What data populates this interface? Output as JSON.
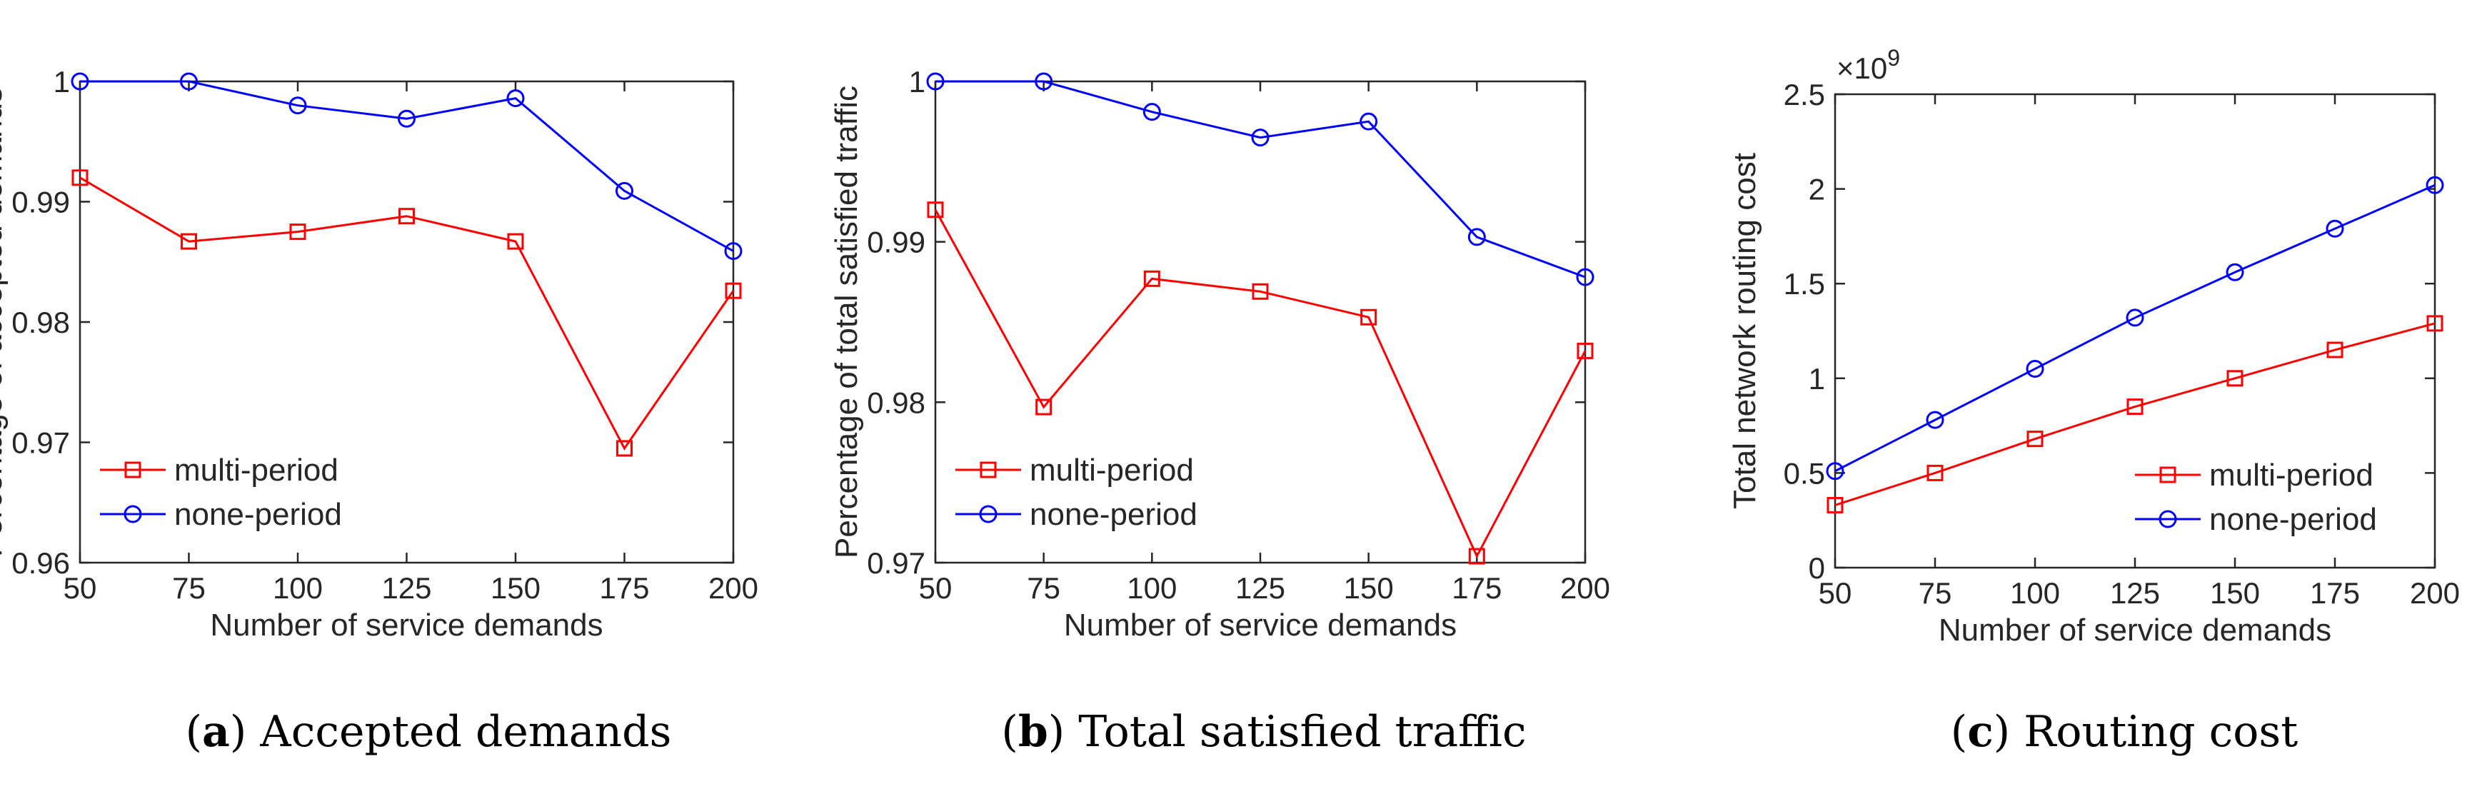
{
  "captions": [
    {
      "letter": "(a)",
      "text": "Accepted demands"
    },
    {
      "letter": "(b)",
      "text": "Total satisfied traffic"
    },
    {
      "letter": "(c)",
      "text": "Routing cost"
    }
  ],
  "colors": {
    "multi": "#ff0000",
    "none": "#0000ff",
    "axis": "#262626"
  },
  "chart_data": [
    {
      "type": "line",
      "xlabel": "Number of service demands",
      "ylabel": "Percentage of accepted demands",
      "xlim": [
        50,
        200
      ],
      "ylim": [
        0.96,
        1.0
      ],
      "xticks": [
        50,
        75,
        100,
        125,
        150,
        175,
        200
      ],
      "xtick_labels": [
        "50",
        "75",
        "100",
        "125",
        "150",
        "175",
        "200"
      ],
      "yticks": [
        0.96,
        0.97,
        0.98,
        0.99,
        1.0
      ],
      "ytick_labels": [
        "0.96",
        "0.97",
        "0.98",
        "0.99",
        "1"
      ],
      "legend_position": "bottom-left",
      "x": [
        50,
        75,
        100,
        125,
        150,
        175,
        200
      ],
      "series": [
        {
          "name": "multi-period",
          "marker": "square",
          "values": [
            0.992,
            0.9867,
            0.9875,
            0.9888,
            0.9867,
            0.9695,
            0.9826
          ]
        },
        {
          "name": "none-period",
          "marker": "circle",
          "values": [
            1.0,
            1.0,
            0.998,
            0.9969,
            0.9986,
            0.9909,
            0.9859
          ]
        }
      ]
    },
    {
      "type": "line",
      "xlabel": "Number of service demands",
      "ylabel": "Percentage of total satisfied traffic",
      "xlim": [
        50,
        200
      ],
      "ylim": [
        0.97,
        1.0
      ],
      "xticks": [
        50,
        75,
        100,
        125,
        150,
        175,
        200
      ],
      "xtick_labels": [
        "50",
        "75",
        "100",
        "125",
        "150",
        "175",
        "200"
      ],
      "yticks": [
        0.97,
        0.98,
        0.99,
        1.0
      ],
      "ytick_labels": [
        "0.97",
        "0.98",
        "0.99",
        "1"
      ],
      "legend_position": "bottom-left",
      "x": [
        50,
        75,
        100,
        125,
        150,
        175,
        200
      ],
      "series": [
        {
          "name": "multi-period",
          "marker": "square",
          "values": [
            0.992,
            0.9797,
            0.9877,
            0.9869,
            0.9853,
            0.9704,
            0.9832
          ]
        },
        {
          "name": "none-period",
          "marker": "circle",
          "values": [
            1.0,
            1.0,
            0.9981,
            0.9965,
            0.9975,
            0.9903,
            0.9878
          ]
        }
      ]
    },
    {
      "type": "line",
      "xlabel": "Number of service demands",
      "ylabel": "Total network routing cost",
      "exponent_label": "×10",
      "exponent_power": "9",
      "xlim": [
        50,
        200
      ],
      "ylim": [
        0,
        2.5
      ],
      "xticks": [
        50,
        75,
        100,
        125,
        150,
        175,
        200
      ],
      "xtick_labels": [
        "50",
        "75",
        "100",
        "125",
        "150",
        "175",
        "200"
      ],
      "yticks": [
        0,
        0.5,
        1,
        1.5,
        2,
        2.5
      ],
      "ytick_labels": [
        "0",
        "0.5",
        "1",
        "1.5",
        "2",
        "2.5"
      ],
      "legend_position": "bottom-right",
      "x": [
        50,
        75,
        100,
        125,
        150,
        175,
        200
      ],
      "series": [
        {
          "name": "multi-period",
          "marker": "square",
          "values": [
            0.33,
            0.5,
            0.68,
            0.85,
            1.0,
            1.15,
            1.29
          ]
        },
        {
          "name": "none-period",
          "marker": "circle",
          "values": [
            0.51,
            0.78,
            1.05,
            1.32,
            1.56,
            1.79,
            2.02
          ]
        }
      ]
    }
  ]
}
